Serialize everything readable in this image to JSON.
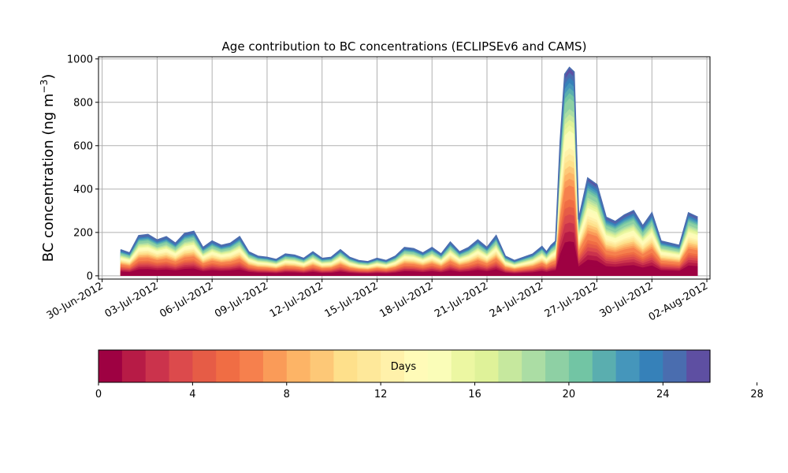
{
  "chart_data": {
    "type": "area",
    "title": "Age contribution to BC concentrations (ECLIPSEv6 and CAMS)",
    "xlabel": "",
    "ylabel": "BC concentration (ng m",
    "ylabel_superscript": "−3",
    "ylabel_suffix": ")",
    "ylim": [
      -15,
      1010
    ],
    "xlim": [
      "2012-06-30",
      "2012-08-02"
    ],
    "grid": true,
    "legend": "none",
    "y_ticks": [
      0,
      200,
      400,
      600,
      800,
      1000
    ],
    "y_tick_labels": [
      "0",
      "200",
      "400",
      "600",
      "800",
      "1000"
    ],
    "x_ticks": [
      "2012-06-30",
      "2012-07-03",
      "2012-07-06",
      "2012-07-09",
      "2012-07-12",
      "2012-07-15",
      "2012-07-18",
      "2012-07-21",
      "2012-07-24",
      "2012-07-27",
      "2012-07-30",
      "2012-08-02"
    ],
    "x_tick_labels": [
      "30-Jun-2012",
      "03-Jul-2012",
      "06-Jul-2012",
      "09-Jul-2012",
      "12-Jul-2012",
      "15-Jul-2012",
      "18-Jul-2012",
      "21-Jul-2012",
      "24-Jul-2012",
      "27-Jul-2012",
      "30-Jul-2012",
      "02-Aug-2012"
    ],
    "x": [
      "2012-07-01",
      "2012-07-01 12:00",
      "2012-07-02",
      "2012-07-02 12:00",
      "2012-07-03",
      "2012-07-03 12:00",
      "2012-07-04",
      "2012-07-04 12:00",
      "2012-07-05",
      "2012-07-05 12:00",
      "2012-07-06",
      "2012-07-06 12:00",
      "2012-07-07",
      "2012-07-07 12:00",
      "2012-07-08",
      "2012-07-08 12:00",
      "2012-07-09",
      "2012-07-09 12:00",
      "2012-07-10",
      "2012-07-10 12:00",
      "2012-07-11",
      "2012-07-11 12:00",
      "2012-07-12",
      "2012-07-12 12:00",
      "2012-07-13",
      "2012-07-13 12:00",
      "2012-07-14",
      "2012-07-14 12:00",
      "2012-07-15",
      "2012-07-15 12:00",
      "2012-07-16",
      "2012-07-16 12:00",
      "2012-07-17",
      "2012-07-17 12:00",
      "2012-07-18",
      "2012-07-18 12:00",
      "2012-07-19",
      "2012-07-19 12:00",
      "2012-07-20",
      "2012-07-20 12:00",
      "2012-07-21",
      "2012-07-21 12:00",
      "2012-07-22",
      "2012-07-22 12:00",
      "2012-07-23",
      "2012-07-23 12:00",
      "2012-07-24",
      "2012-07-24 06:00",
      "2012-07-24 12:00",
      "2012-07-24 18:00",
      "2012-07-25",
      "2012-07-25 06:00",
      "2012-07-25 12:00",
      "2012-07-25 18:00",
      "2012-07-26",
      "2012-07-26 12:00",
      "2012-07-27",
      "2012-07-27 12:00",
      "2012-07-28",
      "2012-07-28 12:00",
      "2012-07-29",
      "2012-07-29 12:00",
      "2012-07-30",
      "2012-07-30 12:00",
      "2012-07-31",
      "2012-07-31 12:00",
      "2012-08-01",
      "2012-08-01 12:00"
    ],
    "total": [
      120,
      105,
      185,
      190,
      165,
      180,
      150,
      195,
      205,
      130,
      160,
      140,
      150,
      180,
      110,
      90,
      85,
      75,
      100,
      95,
      80,
      110,
      80,
      85,
      120,
      85,
      70,
      65,
      80,
      70,
      90,
      130,
      125,
      105,
      130,
      100,
      155,
      110,
      130,
      165,
      130,
      185,
      90,
      70,
      85,
      100,
      135,
      110,
      140,
      160,
      620,
      930,
      960,
      940,
      260,
      450,
      420,
      270,
      250,
      280,
      300,
      230,
      290,
      160,
      150,
      140,
      290,
      270
    ],
    "colorbar": {
      "label": "Days",
      "min": 0,
      "max": 30,
      "ticks": [
        0,
        4,
        8,
        12,
        16,
        20,
        24,
        28
      ],
      "tick_labels": [
        "0",
        "4",
        "8",
        "12",
        "16",
        "20",
        "24",
        "28"
      ],
      "colors": [
        "#9e0142",
        "#b71b46",
        "#cb334c",
        "#dc4a4c",
        "#e65c46",
        "#f06d44",
        "#f6804d",
        "#fa9b58",
        "#fdb466",
        "#fdc877",
        "#fee08b",
        "#fee89a",
        "#fff1aa",
        "#fffbb8",
        "#fafdb8",
        "#ecf7a2",
        "#dff299",
        "#c6e89e",
        "#abdda4",
        "#8ed0a4",
        "#72c5a4",
        "#5aaeaf",
        "#4596bb",
        "#3681b9",
        "#4a6daf",
        "#5e4fa2"
      ]
    }
  }
}
